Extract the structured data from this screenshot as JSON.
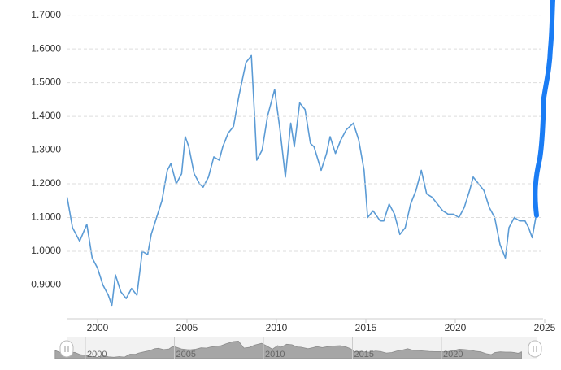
{
  "chart_data": {
    "type": "line",
    "x": [
      1998.3,
      1998.6,
      1999.0,
      1999.4,
      1999.7,
      2000.0,
      2000.3,
      2000.6,
      2000.8,
      2001.0,
      2001.3,
      2001.6,
      2001.9,
      2002.2,
      2002.5,
      2002.8,
      2003.0,
      2003.3,
      2003.6,
      2003.9,
      2004.1,
      2004.4,
      2004.7,
      2004.9,
      2005.1,
      2005.4,
      2005.7,
      2005.9,
      2006.2,
      2006.5,
      2006.8,
      2007.0,
      2007.3,
      2007.6,
      2007.9,
      2008.3,
      2008.6,
      2008.8,
      2008.9,
      2009.2,
      2009.5,
      2009.9,
      2010.2,
      2010.5,
      2010.8,
      2011.0,
      2011.3,
      2011.6,
      2011.9,
      2012.1,
      2012.5,
      2012.8,
      2013.0,
      2013.3,
      2013.6,
      2013.9,
      2014.3,
      2014.6,
      2014.9,
      2015.1,
      2015.4,
      2015.8,
      2016.0,
      2016.3,
      2016.6,
      2016.9,
      2017.2,
      2017.5,
      2017.8,
      2018.1,
      2018.4,
      2018.7,
      2019.0,
      2019.3,
      2019.6,
      2019.9,
      2020.2,
      2020.5,
      2020.8,
      2021.0,
      2021.3,
      2021.6,
      2021.9,
      2022.2,
      2022.5,
      2022.8,
      2023.0,
      2023.3,
      2023.6,
      2023.9,
      2024.1,
      2024.3,
      2024.5
    ],
    "series": [
      {
        "color": "#5b9bd5",
        "values": [
          1.16,
          1.07,
          1.03,
          1.08,
          0.98,
          0.95,
          0.9,
          0.87,
          0.84,
          0.93,
          0.88,
          0.86,
          0.89,
          0.87,
          1.0,
          0.99,
          1.05,
          1.1,
          1.15,
          1.24,
          1.26,
          1.2,
          1.23,
          1.34,
          1.31,
          1.23,
          1.2,
          1.19,
          1.22,
          1.28,
          1.27,
          1.31,
          1.35,
          1.37,
          1.46,
          1.56,
          1.58,
          1.38,
          1.27,
          1.3,
          1.4,
          1.48,
          1.36,
          1.22,
          1.38,
          1.31,
          1.44,
          1.42,
          1.32,
          1.31,
          1.24,
          1.29,
          1.34,
          1.29,
          1.33,
          1.36,
          1.38,
          1.33,
          1.24,
          1.1,
          1.12,
          1.09,
          1.09,
          1.14,
          1.11,
          1.05,
          1.07,
          1.14,
          1.18,
          1.24,
          1.17,
          1.16,
          1.14,
          1.12,
          1.11,
          1.11,
          1.1,
          1.13,
          1.18,
          1.22,
          1.2,
          1.18,
          1.13,
          1.1,
          1.02,
          0.98,
          1.07,
          1.1,
          1.09,
          1.09,
          1.07,
          1.04,
          1.1
        ]
      }
    ],
    "xlim": [
      1998.3,
      2025
    ],
    "xticks": [
      2000,
      2005,
      2010,
      2015,
      2020,
      2025
    ],
    "ylim": [
      0.8,
      1.74
    ],
    "yticks": [
      {
        "value": 0.9,
        "label": "0.9000"
      },
      {
        "value": 1.0,
        "label": "1.0000"
      },
      {
        "value": 1.1,
        "label": "1.1000"
      },
      {
        "value": 1.2,
        "label": "1.2000"
      },
      {
        "value": 1.3,
        "label": "1.3000"
      },
      {
        "value": 1.4,
        "label": "1.4000"
      },
      {
        "value": 1.5,
        "label": "1.5000"
      },
      {
        "value": 1.6,
        "label": "1.6000"
      },
      {
        "value": 1.7,
        "label": "1.7000"
      }
    ],
    "grid": true
  }
}
